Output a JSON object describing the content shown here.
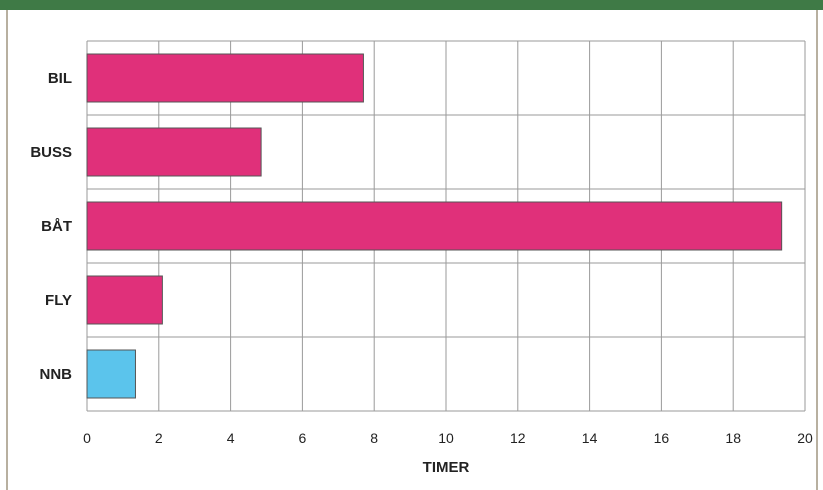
{
  "chart_data": {
    "type": "bar",
    "orientation": "horizontal",
    "categories": [
      "BIL",
      "BUSS",
      "BÅT",
      "FLY",
      "NNB"
    ],
    "values": [
      7.7,
      4.85,
      19.35,
      2.1,
      1.35
    ],
    "bar_colors": [
      "#e0307a",
      "#e0307a",
      "#e0307a",
      "#e0307a",
      "#5bc4ec"
    ],
    "xlabel": "TIMER",
    "xlim": [
      0,
      20
    ],
    "xticks": [
      "0",
      "2",
      "4",
      "6",
      "8",
      "10",
      "12",
      "14",
      "16",
      "18",
      "20"
    ],
    "grid": true
  },
  "colors": {
    "header_band": "#3f7a46",
    "grid": "#9a9a9a",
    "bar_stroke": "#555555"
  }
}
